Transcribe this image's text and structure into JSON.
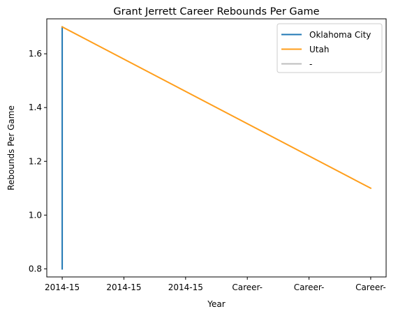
{
  "chart_data": {
    "type": "line",
    "title": "Grant Jerrett Career Rebounds Per Game",
    "xlabel": "Year",
    "ylabel": "Rebounds Per Game",
    "x_ticks": [
      "2014-15",
      "2014-15",
      "2014-15",
      "Career-",
      "Career-",
      "Career-"
    ],
    "xlim": [
      -0.25,
      5.25
    ],
    "ylim": [
      0.77,
      1.73
    ],
    "y_ticks": [
      0.8,
      1.0,
      1.2,
      1.4,
      1.6
    ],
    "y_tick_labels": [
      "0.8",
      "1.0",
      "1.2",
      "1.4",
      "1.6"
    ],
    "grid": false,
    "legend_position": "top-right",
    "series": [
      {
        "name": "Oklahoma City",
        "color": "#1f77b4",
        "points": [
          {
            "x": 0,
            "y": 0.8
          },
          {
            "x": 0,
            "y": 1.7
          }
        ]
      },
      {
        "name": "Utah",
        "color": "#ff9e1b",
        "points": [
          {
            "x": 0,
            "y": 1.7
          },
          {
            "x": 5,
            "y": 1.1
          }
        ]
      },
      {
        "name": "-",
        "color": "#bebebe",
        "points": []
      }
    ]
  }
}
